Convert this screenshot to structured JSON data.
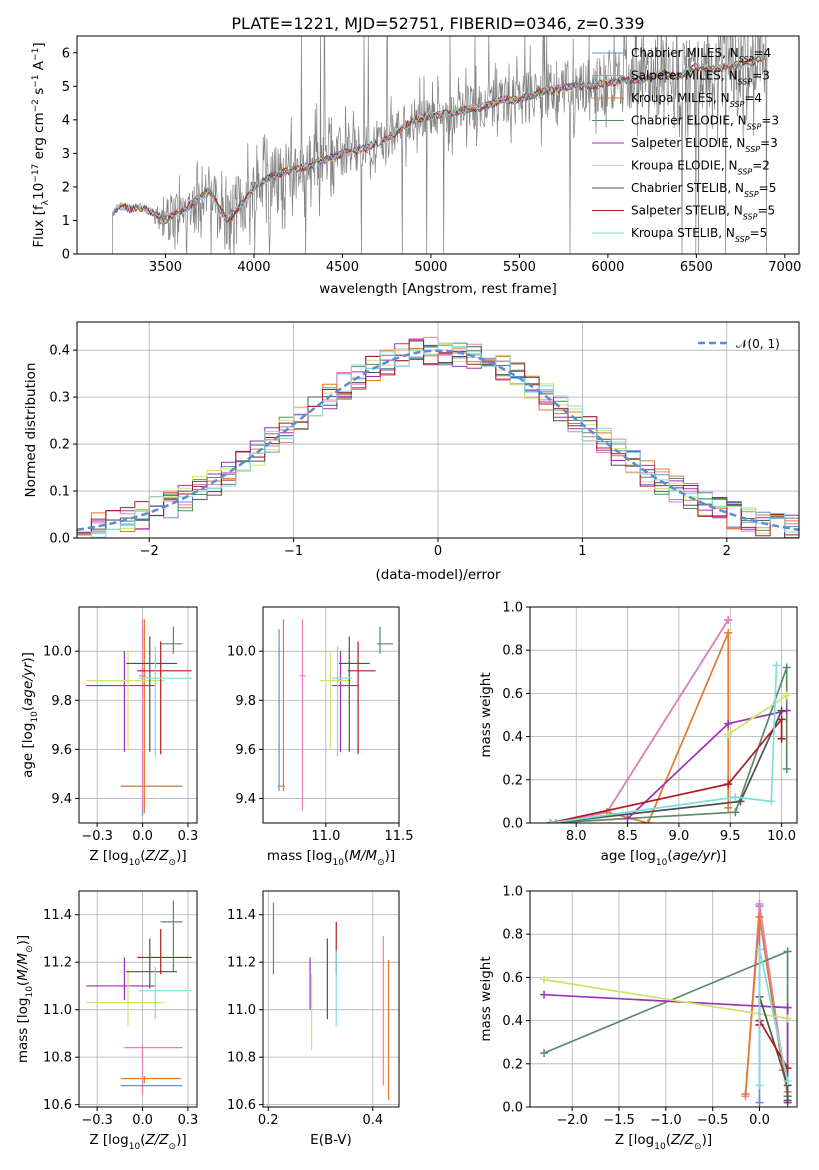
{
  "chart_data": [
    {
      "type": "line",
      "title": "PLATE=1221, MJD=52751, FIBERID=0346, z=0.339",
      "xlabel": "wavelength [Angstrom, rest frame]",
      "ylabel": "Flux [f_λ10^-17 erg cm^-2 s^-1 A^-1]",
      "xlim": [
        3000,
        7080
      ],
      "ylim": [
        0,
        6.5
      ],
      "xticks": [
        3500,
        4000,
        4500,
        5000,
        5500,
        6000,
        6500,
        7000
      ],
      "yticks": [
        0,
        1,
        2,
        3,
        4,
        5,
        6
      ],
      "grid": false,
      "legend_position": "right",
      "observed_spectrum": {
        "color": "#808080",
        "x": [
          3200,
          3250,
          3300,
          3350,
          3400,
          3450,
          3500,
          3550,
          3600,
          3650,
          3700,
          3750,
          3800,
          3850,
          3900,
          3950,
          4000,
          4100,
          4200,
          4300,
          4400,
          4500,
          4600,
          4700,
          4800,
          4900,
          5000,
          5100,
          5200,
          5300,
          5400,
          5500,
          5600,
          5700,
          5800,
          5900,
          6000,
          6100,
          6200,
          6300,
          6400,
          6500,
          6600,
          6700,
          6800,
          6900
        ],
        "y": [
          1.25,
          1.45,
          1.35,
          1.4,
          1.3,
          1.2,
          1.0,
          1.2,
          1.3,
          1.5,
          1.7,
          1.9,
          1.4,
          1.0,
          1.3,
          1.6,
          2.0,
          2.3,
          2.5,
          2.6,
          2.8,
          3.0,
          3.1,
          3.3,
          3.6,
          4.0,
          4.1,
          4.2,
          4.3,
          4.4,
          4.6,
          4.6,
          4.8,
          4.9,
          5.0,
          5.0,
          5.1,
          5.2,
          5.2,
          5.4,
          5.3,
          5.6,
          5.5,
          5.6,
          5.7,
          5.9
        ],
        "noise_amplitude": [
          0,
          0,
          0,
          0,
          0,
          0.3,
          0.9,
          0.9,
          0.8,
          0.8,
          0.9,
          1.0,
          0.9,
          1.2,
          1.3,
          1.2,
          1.1,
          1.1,
          1.1,
          1.2,
          1.2,
          1.0,
          0.9,
          0.8,
          0.8,
          0.8,
          0.8,
          0.8,
          0.8,
          0.9,
          0.9,
          1.0,
          1.0,
          1.1,
          1.1,
          1.1,
          1.2,
          1.2,
          1.2,
          1.3,
          1.3,
          1.4,
          1.4,
          1.5,
          1.5,
          1.5
        ]
      },
      "models": [
        {
          "name": "Chabrier MILES, N_SSP=4",
          "color": "#6a8fd0"
        },
        {
          "name": "Salpeter MILES, N_SSP=3",
          "color": "#e77fb5"
        },
        {
          "name": "Kroupa MILES, N_SSP=4",
          "color": "#e07b2c"
        },
        {
          "name": "Chabrier ELODIE, N_SSP=3",
          "color": "#5a8a68"
        },
        {
          "name": "Salpeter ELODIE, N_SSP=3",
          "color": "#9b32b4"
        },
        {
          "name": "Kroupa ELODIE, N_SSP=2",
          "color": "#cfe36a"
        },
        {
          "name": "Chabrier STELIB, N_SSP=5",
          "color": "#505050"
        },
        {
          "name": "Salpeter STELIB, N_SSP=5",
          "color": "#b01c22"
        },
        {
          "name": "Kroupa STELIB, N_SSP=5",
          "color": "#7fdce0"
        }
      ]
    },
    {
      "type": "histogram",
      "xlabel": "(data-model)/error",
      "ylabel": "Normed distribution",
      "xlim": [
        -2.5,
        2.5
      ],
      "ylim": [
        0,
        0.46
      ],
      "xticks": [
        -2,
        -1,
        0,
        1,
        2
      ],
      "yticks": [
        0.0,
        0.1,
        0.2,
        0.3,
        0.4
      ],
      "grid": true,
      "legend_position": "top-right",
      "reference_curve": {
        "name": "𝒩(0, 1)",
        "color": "#5b8bd4"
      }
    },
    {
      "type": "errorbar",
      "xlabel": "Z [log10(Z/Z_sun)]",
      "ylabel": "age  [log10(age/yr)]",
      "xlim": [
        -0.35,
        0.3
      ],
      "ylim": [
        9.3,
        10.18
      ],
      "xticks": [
        -0.25,
        0.0,
        0.25
      ],
      "yticks": [
        9.4,
        9.6,
        9.8,
        10.0
      ],
      "grid": true,
      "points": [
        {
          "x": 0.0,
          "xerr": [
            0.12,
            0.22
          ],
          "y": 9.45,
          "yerr": [
            0.12,
            0.64
          ],
          "color": "#6a8fd0"
        },
        {
          "x": 0.01,
          "xerr": [
            0.13,
            0.2
          ],
          "y": 9.45,
          "yerr": [
            0.11,
            0.68
          ],
          "color": "#e07b2c"
        },
        {
          "x": 0.0,
          "xerr": [
            0.02,
            0.02
          ],
          "y": 9.9,
          "yerr": [
            0.55,
            0.23
          ],
          "color": "#e77fb5"
        },
        {
          "x": 0.17,
          "xerr": [
            0.07,
            0.05
          ],
          "y": 10.03,
          "yerr": [
            0.04,
            0.07
          ],
          "color": "#5a8a68"
        },
        {
          "x": -0.1,
          "xerr": [
            0.21,
            0.17
          ],
          "y": 9.86,
          "yerr": [
            0.27,
            0.14
          ],
          "color": "#9b32b4"
        },
        {
          "x": -0.08,
          "xerr": [
            0.23,
            0.2
          ],
          "y": 9.88,
          "yerr": [
            0.28,
            0.12
          ],
          "color": "#cfe36a"
        },
        {
          "x": 0.04,
          "xerr": [
            0.13,
            0.15
          ],
          "y": 9.95,
          "yerr": [
            0.36,
            0.11
          ],
          "color": "#505050"
        },
        {
          "x": 0.1,
          "xerr": [
            0.13,
            0.17
          ],
          "y": 9.92,
          "yerr": [
            0.34,
            0.12
          ],
          "color": "#b01c22"
        },
        {
          "x": 0.07,
          "xerr": [
            0.09,
            0.2
          ],
          "y": 9.89,
          "yerr": [
            0.32,
            0.13
          ],
          "color": "#7fdce0"
        }
      ]
    },
    {
      "type": "errorbar",
      "xlabel": "mass [log10(M/M_sun)]",
      "xlim": [
        10.57,
        11.5
      ],
      "ylim": [
        9.3,
        10.18
      ],
      "xticks": [
        11.0,
        11.5
      ],
      "yticks": [
        9.4,
        9.6,
        9.8,
        10.0
      ],
      "grid": true,
      "points": [
        {
          "x": 10.68,
          "xerr": [
            0.01,
            0.01
          ],
          "y": 9.45,
          "yerr": [
            0.02,
            0.64
          ],
          "color": "#6a8fd0"
        },
        {
          "x": 10.71,
          "xerr": [
            0.02,
            0.01
          ],
          "y": 9.45,
          "yerr": [
            0.02,
            0.68
          ],
          "color": "#e07b2c"
        },
        {
          "x": 10.84,
          "xerr": [
            0.02,
            0.02
          ],
          "y": 9.9,
          "yerr": [
            0.55,
            0.23
          ],
          "color": "#e77fb5"
        },
        {
          "x": 11.37,
          "xerr": [
            0.02,
            0.09
          ],
          "y": 10.03,
          "yerr": [
            0.04,
            0.07
          ],
          "color": "#5a8a68"
        },
        {
          "x": 11.1,
          "xerr": [
            0.06,
            0.12
          ],
          "y": 9.86,
          "yerr": [
            0.27,
            0.14
          ],
          "color": "#9b32b4"
        },
        {
          "x": 11.03,
          "xerr": [
            0.07,
            0.14
          ],
          "y": 9.88,
          "yerr": [
            0.28,
            0.12
          ],
          "color": "#cfe36a"
        },
        {
          "x": 11.16,
          "xerr": [
            0.07,
            0.14
          ],
          "y": 9.95,
          "yerr": [
            0.36,
            0.11
          ],
          "color": "#505050"
        },
        {
          "x": 11.22,
          "xerr": [
            0.07,
            0.12
          ],
          "y": 9.92,
          "yerr": [
            0.34,
            0.12
          ],
          "color": "#b01c22"
        },
        {
          "x": 11.08,
          "xerr": [
            0.04,
            0.1
          ],
          "y": 9.89,
          "yerr": [
            0.32,
            0.13
          ],
          "color": "#7fdce0"
        }
      ]
    },
    {
      "type": "line",
      "xlabel": "age  [log10(age/yr)]",
      "ylabel": "mass weight",
      "xlim": [
        7.55,
        10.15
      ],
      "ylim": [
        0,
        1.0
      ],
      "xticks": [
        8.0,
        8.5,
        9.0,
        9.5,
        10.0
      ],
      "yticks": [
        0.0,
        0.2,
        0.4,
        0.6,
        0.8,
        1.0
      ],
      "grid": true,
      "series": [
        {
          "color": "#6a8fd0",
          "x": [
            7.75,
            8.3,
            9.48
          ],
          "y": [
            0.0,
            0.05,
            0.94
          ]
        },
        {
          "color": "#e77fb5",
          "x": [
            7.8,
            8.3,
            9.48
          ],
          "y": [
            0.0,
            0.05,
            0.94
          ]
        },
        {
          "color": "#e07b2c",
          "x": [
            8.3,
            8.7,
            9.48,
            9.48
          ],
          "y": [
            0.05,
            0.0,
            0.88,
            0.07
          ]
        },
        {
          "color": "#5a8a68",
          "x": [
            7.75,
            9.55,
            10.05,
            10.05
          ],
          "y": [
            0.0,
            0.05,
            0.72,
            0.25
          ]
        },
        {
          "color": "#9b32b4",
          "x": [
            8.5,
            9.48,
            10.05
          ],
          "y": [
            0.02,
            0.46,
            0.52
          ]
        },
        {
          "color": "#cfe36a",
          "x": [
            9.48,
            10.05
          ],
          "y": [
            0.41,
            0.59
          ]
        },
        {
          "color": "#505050",
          "x": [
            7.75,
            9.6,
            10.0
          ],
          "y": [
            0.0,
            0.1,
            0.52
          ]
        },
        {
          "color": "#b01c22",
          "x": [
            7.75,
            9.48,
            10.0,
            10.0
          ],
          "y": [
            0.0,
            0.18,
            0.48,
            0.39
          ]
        },
        {
          "color": "#7fdce0",
          "x": [
            7.75,
            9.55,
            9.9,
            9.95
          ],
          "y": [
            0.0,
            0.12,
            0.1,
            0.73
          ]
        }
      ]
    },
    {
      "type": "errorbar",
      "xlabel": "Z [log10(Z/Z_sun)]",
      "ylabel": "mass [log10(M/M_sun)]",
      "xlim": [
        -0.35,
        0.3
      ],
      "ylim": [
        10.59,
        11.5
      ],
      "xticks": [
        -0.25,
        0.0,
        0.25
      ],
      "yticks": [
        10.6,
        10.8,
        11.0,
        11.2,
        11.4
      ],
      "grid": true,
      "points": [
        {
          "x": 0.0,
          "xerr": [
            0.12,
            0.22
          ],
          "y": 10.68,
          "yerr": [
            0.01,
            0.01
          ],
          "color": "#6a8fd0"
        },
        {
          "x": 0.01,
          "xerr": [
            0.13,
            0.2
          ],
          "y": 10.71,
          "yerr": [
            0.02,
            0.01
          ],
          "color": "#e07b2c"
        },
        {
          "x": 0.0,
          "xerr": [
            0.1,
            0.22
          ],
          "y": 10.84,
          "yerr": [
            0.2,
            0.01
          ],
          "color": "#e77fb5"
        },
        {
          "x": 0.17,
          "xerr": [
            0.07,
            0.05
          ],
          "y": 11.37,
          "yerr": [
            0.21,
            0.09
          ],
          "color": "#5a8a68"
        },
        {
          "x": -0.1,
          "xerr": [
            0.21,
            0.17
          ],
          "y": 11.1,
          "yerr": [
            0.06,
            0.12
          ],
          "color": "#9b32b4"
        },
        {
          "x": -0.08,
          "xerr": [
            0.23,
            0.2
          ],
          "y": 11.03,
          "yerr": [
            0.1,
            0.14
          ],
          "color": "#cfe36a"
        },
        {
          "x": 0.04,
          "xerr": [
            0.13,
            0.15
          ],
          "y": 11.16,
          "yerr": [
            0.07,
            0.14
          ],
          "color": "#505050"
        },
        {
          "x": 0.1,
          "xerr": [
            0.13,
            0.17
          ],
          "y": 11.22,
          "yerr": [
            0.07,
            0.12
          ],
          "color": "#b01c22"
        },
        {
          "x": 0.07,
          "xerr": [
            0.09,
            0.2
          ],
          "y": 11.08,
          "yerr": [
            0.12,
            0.1
          ],
          "color": "#7fdce0"
        }
      ]
    },
    {
      "type": "errorbar",
      "xlabel": "E(B-V)",
      "xlim": [
        0.19,
        0.45
      ],
      "ylim": [
        10.59,
        11.5
      ],
      "xticks": [
        0.2,
        0.4
      ],
      "yticks": [
        10.6,
        10.8,
        11.0,
        11.2,
        11.4
      ],
      "grid": true,
      "points": [
        {
          "x": 0.21,
          "y": 11.3,
          "yerr": [
            0.15,
            0.15
          ],
          "color": "#5a8a68"
        },
        {
          "x": 0.28,
          "y": 11.1,
          "yerr": [
            0.1,
            0.12
          ],
          "color": "#9b32b4"
        },
        {
          "x": 0.283,
          "y": 11.03,
          "yerr": [
            0.2,
            0.12
          ],
          "color": "#cfe36a"
        },
        {
          "x": 0.313,
          "y": 11.16,
          "yerr": [
            0.2,
            0.14
          ],
          "color": "#505050"
        },
        {
          "x": 0.33,
          "y": 11.22,
          "yerr": [
            0.07,
            0.15
          ],
          "color": "#b01c22"
        },
        {
          "x": 0.33,
          "y": 11.08,
          "yerr": [
            0.15,
            0.17
          ],
          "color": "#7fdce0"
        },
        {
          "x": 0.42,
          "y": 11.0,
          "yerr": [
            0.32,
            0.31
          ],
          "color": "#e77fb5"
        },
        {
          "x": 0.43,
          "y": 10.92,
          "yerr": [
            0.3,
            0.29
          ],
          "color": "#e07b2c"
        }
      ]
    },
    {
      "type": "line",
      "xlabel": "Z [log10(Z/Z_sun)]",
      "ylabel": "mass weight",
      "xlim": [
        -2.45,
        0.4
      ],
      "ylim": [
        0,
        1.0
      ],
      "xticks": [
        -2.0,
        -1.5,
        -1.0,
        -0.5,
        0.0
      ],
      "yticks": [
        0.0,
        0.2,
        0.4,
        0.6,
        0.8,
        1.0
      ],
      "grid": true,
      "series": [
        {
          "color": "#6a8fd0",
          "x": [
            0.0,
            0.0
          ],
          "y": [
            0.02,
            0.93
          ]
        },
        {
          "color": "#e77fb5",
          "x": [
            -0.15,
            0.0,
            0.3
          ],
          "y": [
            0.05,
            0.94,
            0.05
          ]
        },
        {
          "color": "#e07b2c",
          "x": [
            -0.15,
            0.0,
            0.25,
            0.3
          ],
          "y": [
            0.06,
            0.88,
            0.17,
            0.07
          ]
        },
        {
          "color": "#5a8a68",
          "x": [
            -2.3,
            0.3,
            0.3
          ],
          "y": [
            0.25,
            0.72,
            0.05
          ]
        },
        {
          "color": "#9b32b4",
          "x": [
            -2.3,
            0.3,
            0.3
          ],
          "y": [
            0.52,
            0.46,
            0.02
          ]
        },
        {
          "color": "#cfe36a",
          "x": [
            -2.3,
            0.3
          ],
          "y": [
            0.59,
            0.41
          ]
        },
        {
          "color": "#505050",
          "x": [
            0.0,
            0.0,
            0.3,
            0.3
          ],
          "y": [
            0.38,
            0.51,
            0.1,
            0.03
          ]
        },
        {
          "color": "#b01c22",
          "x": [
            0.0,
            0.0,
            0.3
          ],
          "y": [
            0.38,
            0.4,
            0.18
          ]
        },
        {
          "color": "#7fdce0",
          "x": [
            0.0,
            0.0,
            0.3
          ],
          "y": [
            0.1,
            0.73,
            0.12
          ]
        }
      ]
    }
  ]
}
